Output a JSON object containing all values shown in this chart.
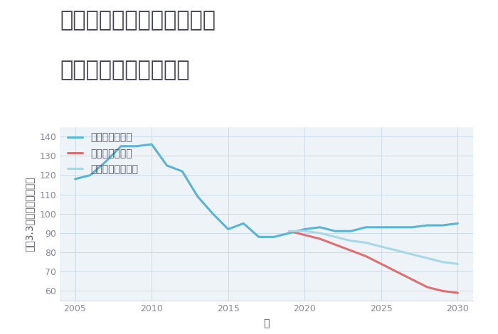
{
  "title_line1": "兵庫県豊岡市出石町松枝の",
  "title_line2": "中古戸建ての価格推移",
  "xlabel": "年",
  "ylabel": "坪（3.3㎡）単価（万円）",
  "background_color": "#ffffff",
  "plot_background": "#eef3f8",
  "ylim": [
    55,
    145
  ],
  "xlim": [
    2004,
    2031
  ],
  "yticks": [
    60,
    70,
    80,
    90,
    100,
    110,
    120,
    130,
    140
  ],
  "xticks": [
    2005,
    2010,
    2015,
    2020,
    2025,
    2030
  ],
  "good_scenario": {
    "label": "グッドシナリオ",
    "color": "#5ab4d6",
    "linewidth": 2.2,
    "x": [
      2005,
      2006,
      2007,
      2008,
      2009,
      2010,
      2011,
      2012,
      2013,
      2014,
      2015,
      2016,
      2017,
      2018,
      2019,
      2020,
      2021,
      2022,
      2023,
      2024,
      2025,
      2026,
      2027,
      2028,
      2029,
      2030
    ],
    "y": [
      118,
      120,
      127,
      135,
      135,
      136,
      125,
      122,
      109,
      100,
      92,
      95,
      88,
      88,
      90,
      92,
      93,
      91,
      91,
      93,
      93,
      93,
      93,
      94,
      94,
      95
    ]
  },
  "bad_scenario": {
    "label": "バッドシナリオ",
    "color": "#e07070",
    "linewidth": 2.2,
    "x": [
      2019,
      2020,
      2021,
      2022,
      2023,
      2024,
      2025,
      2026,
      2027,
      2028,
      2029,
      2030
    ],
    "y": [
      91,
      89,
      87,
      84,
      81,
      78,
      74,
      70,
      66,
      62,
      60,
      59
    ]
  },
  "normal_scenario": {
    "label": "ノーマルシナリオ",
    "color": "#a8d8e8",
    "linewidth": 2.2,
    "x": [
      2019,
      2020,
      2021,
      2022,
      2023,
      2024,
      2025,
      2026,
      2027,
      2028,
      2029,
      2030
    ],
    "y": [
      91,
      91,
      90,
      88,
      86,
      85,
      83,
      81,
      79,
      77,
      75,
      74
    ]
  },
  "grid_color": "#c8d8e8",
  "legend_fontsize": 10,
  "title_fontsize": 22,
  "axis_fontsize": 10,
  "tick_color": "#888899",
  "label_color": "#555566",
  "title_color": "#444455",
  "spine_color": "#ccddee"
}
